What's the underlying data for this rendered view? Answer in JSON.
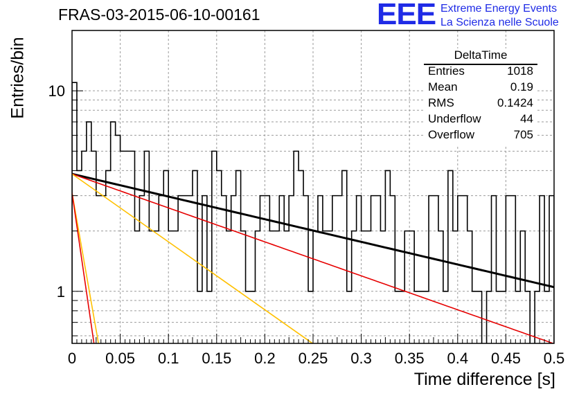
{
  "chart_data": {
    "type": "histogram",
    "title": "FRAS-03-2015-06-10-00161",
    "xlabel": "Time difference [s]",
    "ylabel": "Entries/bin",
    "xlim": [
      0,
      0.5
    ],
    "ylim": [
      0.55,
      20
    ],
    "yscale": "log",
    "grid": true,
    "x_ticks": [
      "0",
      "0.05",
      "0.1",
      "0.15",
      "0.2",
      "0.25",
      "0.3",
      "0.35",
      "0.4",
      "0.45",
      "0.5"
    ],
    "y_ticks": [
      "1",
      "10"
    ],
    "histogram": {
      "name": "DeltaTime",
      "bin_width": 0.005,
      "color": "#000000",
      "values": [
        11,
        4,
        5,
        7,
        5,
        3,
        3,
        4,
        7,
        6,
        5,
        5,
        5,
        2,
        3,
        5,
        2,
        2,
        3,
        4,
        2,
        2,
        3,
        3,
        3,
        4,
        1,
        3,
        1,
        5,
        4,
        3,
        2,
        3,
        4,
        2,
        1,
        1,
        2,
        3,
        3,
        2,
        2,
        3,
        2,
        3,
        5,
        4,
        3,
        1,
        2,
        3,
        2,
        2,
        3,
        3,
        4,
        1,
        2,
        3,
        2,
        2,
        3,
        3,
        2,
        4,
        3,
        1,
        1,
        2,
        2,
        1,
        1,
        1,
        3,
        3,
        2,
        1,
        4,
        2,
        3,
        3,
        2,
        1,
        1,
        0,
        1,
        3,
        1,
        1,
        3,
        3,
        1,
        2,
        1,
        0,
        1,
        3,
        1,
        3
      ]
    },
    "fits": [
      {
        "color": "#000000",
        "amplitude": 3.85,
        "decay_constant": 2.6,
        "x_range": [
          0,
          0.5
        ]
      },
      {
        "color": "#e60000",
        "amplitude": 3.85,
        "decay_constant": 3.9,
        "x_range": [
          0,
          0.5
        ]
      },
      {
        "color": "#ffc000",
        "amplitude": 3.85,
        "decay_constant": 7.8,
        "x_range": [
          0,
          0.26
        ]
      },
      {
        "color": "#ffc000",
        "amplitude": 3.1,
        "decay_constant": 63,
        "x_range": [
          0,
          0.03
        ]
      },
      {
        "color": "#e60000",
        "amplitude": 3.1,
        "decay_constant": 76,
        "x_range": [
          0,
          0.03
        ]
      }
    ]
  },
  "stats": {
    "title": "DeltaTime",
    "rows": [
      {
        "key": "Entries",
        "value": "1018"
      },
      {
        "key": "Mean",
        "value": "0.19"
      },
      {
        "key": "RMS",
        "value": "0.1424"
      },
      {
        "key": "Underflow",
        "value": "44"
      },
      {
        "key": "Overflow",
        "value": "705"
      }
    ]
  },
  "logo": {
    "mark": "EEE",
    "line1": "Extreme Energy Events",
    "line2": "La Scienza nelle Scuole",
    "color": "#1f2be6"
  }
}
